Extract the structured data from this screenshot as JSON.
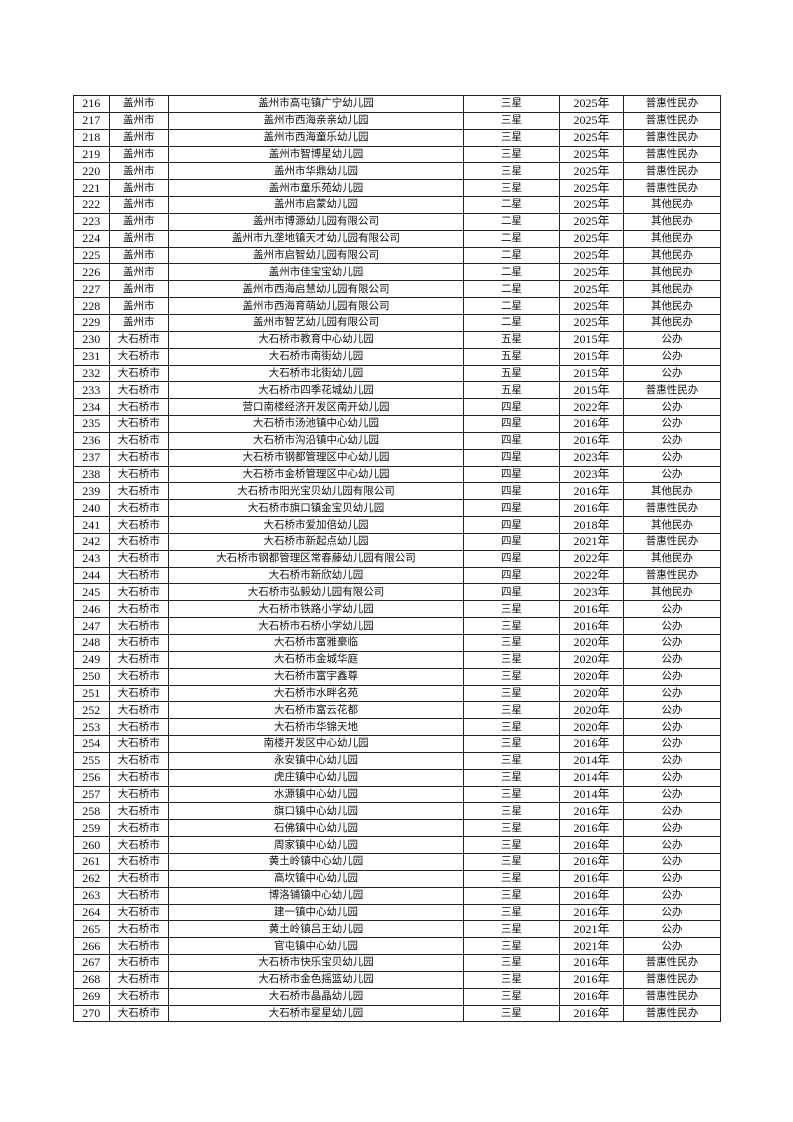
{
  "rows": [
    [
      "216",
      "盖州市",
      "盖州市高屯镇广宁幼儿园",
      "三星",
      "2025年",
      "普惠性民办"
    ],
    [
      "217",
      "盖州市",
      "盖州市西海亲亲幼儿园",
      "三星",
      "2025年",
      "普惠性民办"
    ],
    [
      "218",
      "盖州市",
      "盖州市西海童乐幼儿园",
      "三星",
      "2025年",
      "普惠性民办"
    ],
    [
      "219",
      "盖州市",
      "盖州市智博星幼儿园",
      "三星",
      "2025年",
      "普惠性民办"
    ],
    [
      "220",
      "盖州市",
      "盖州市华鼎幼儿园",
      "三星",
      "2025年",
      "普惠性民办"
    ],
    [
      "221",
      "盖州市",
      "盖州市童乐苑幼儿园",
      "三星",
      "2025年",
      "普惠性民办"
    ],
    [
      "222",
      "盖州市",
      "盖州市启蒙幼儿园",
      "二星",
      "2025年",
      "其他民办"
    ],
    [
      "223",
      "盖州市",
      "盖州市博源幼儿园有限公司",
      "二星",
      "2025年",
      "其他民办"
    ],
    [
      "224",
      "盖州市",
      "盖州市九垄地镇天才幼儿园有限公司",
      "二星",
      "2025年",
      "其他民办"
    ],
    [
      "225",
      "盖州市",
      "盖州市启智幼儿园有限公司",
      "二星",
      "2025年",
      "其他民办"
    ],
    [
      "226",
      "盖州市",
      "盖州市佳宝宝幼儿园",
      "二星",
      "2025年",
      "其他民办"
    ],
    [
      "227",
      "盖州市",
      "盖州市西海启慧幼儿园有限公司",
      "二星",
      "2025年",
      "其他民办"
    ],
    [
      "228",
      "盖州市",
      "盖州市西海育萌幼儿园有限公司",
      "二星",
      "2025年",
      "其他民办"
    ],
    [
      "229",
      "盖州市",
      "盖州市智艺幼儿园有限公司",
      "二星",
      "2025年",
      "其他民办"
    ],
    [
      "230",
      "大石桥市",
      "大石桥市教育中心幼儿园",
      "五星",
      "2015年",
      "公办"
    ],
    [
      "231",
      "大石桥市",
      "大石桥市南街幼儿园",
      "五星",
      "2015年",
      "公办"
    ],
    [
      "232",
      "大石桥市",
      "大石桥市北街幼儿园",
      "五星",
      "2015年",
      "公办"
    ],
    [
      "233",
      "大石桥市",
      "大石桥市四季花城幼儿园",
      "五星",
      "2015年",
      "普惠性民办"
    ],
    [
      "234",
      "大石桥市",
      "营口南楼经济开发区南开幼儿园",
      "四星",
      "2022年",
      "公办"
    ],
    [
      "235",
      "大石桥市",
      "大石桥市汤池镇中心幼儿园",
      "四星",
      "2016年",
      "公办"
    ],
    [
      "236",
      "大石桥市",
      "大石桥市沟沿镇中心幼儿园",
      "四星",
      "2016年",
      "公办"
    ],
    [
      "237",
      "大石桥市",
      "大石桥市钢都管理区中心幼儿园",
      "四星",
      "2023年",
      "公办"
    ],
    [
      "238",
      "大石桥市",
      "大石桥市金桥管理区中心幼儿园",
      "四星",
      "2023年",
      "公办"
    ],
    [
      "239",
      "大石桥市",
      "大石桥市阳光宝贝幼儿园有限公司",
      "四星",
      "2016年",
      "其他民办"
    ],
    [
      "240",
      "大石桥市",
      "大石桥市旗口镇金宝贝幼儿园",
      "四星",
      "2016年",
      "普惠性民办"
    ],
    [
      "241",
      "大石桥市",
      "大石桥市爱加倍幼儿园",
      "四星",
      "2018年",
      "其他民办"
    ],
    [
      "242",
      "大石桥市",
      "大石桥市新起点幼儿园",
      "四星",
      "2021年",
      "普惠性民办"
    ],
    [
      "243",
      "大石桥市",
      "大石桥市钢都管理区常春藤幼儿园有限公司",
      "四星",
      "2022年",
      "其他民办"
    ],
    [
      "244",
      "大石桥市",
      "大石桥市新欣幼儿园",
      "四星",
      "2022年",
      "普惠性民办"
    ],
    [
      "245",
      "大石桥市",
      "大石桥市弘毅幼儿园有限公司",
      "四星",
      "2023年",
      "其他民办"
    ],
    [
      "246",
      "大石桥市",
      "大石桥市铁路小学幼儿园",
      "三星",
      "2016年",
      "公办"
    ],
    [
      "247",
      "大石桥市",
      "大石桥市石桥小学幼儿园",
      "三星",
      "2016年",
      "公办"
    ],
    [
      "248",
      "大石桥市",
      "大石桥市富雅豪临",
      "三星",
      "2020年",
      "公办"
    ],
    [
      "249",
      "大石桥市",
      "大石桥市金城华庭",
      "三星",
      "2020年",
      "公办"
    ],
    [
      "250",
      "大石桥市",
      "大石桥市富宇鑫尊",
      "三星",
      "2020年",
      "公办"
    ],
    [
      "251",
      "大石桥市",
      "大石桥市水畔名苑",
      "三星",
      "2020年",
      "公办"
    ],
    [
      "252",
      "大石桥市",
      "大石桥市富云花都",
      "三星",
      "2020年",
      "公办"
    ],
    [
      "253",
      "大石桥市",
      "大石桥市华锦天地",
      "三星",
      "2020年",
      "公办"
    ],
    [
      "254",
      "大石桥市",
      "南楼开发区中心幼儿园",
      "三星",
      "2016年",
      "公办"
    ],
    [
      "255",
      "大石桥市",
      "永安镇中心幼儿园",
      "三星",
      "2014年",
      "公办"
    ],
    [
      "256",
      "大石桥市",
      "虎庄镇中心幼儿园",
      "三星",
      "2014年",
      "公办"
    ],
    [
      "257",
      "大石桥市",
      "水源镇中心幼儿园",
      "三星",
      "2014年",
      "公办"
    ],
    [
      "258",
      "大石桥市",
      "旗口镇中心幼儿园",
      "三星",
      "2016年",
      "公办"
    ],
    [
      "259",
      "大石桥市",
      "石佛镇中心幼儿园",
      "三星",
      "2016年",
      "公办"
    ],
    [
      "260",
      "大石桥市",
      "周家镇中心幼儿园",
      "三星",
      "2016年",
      "公办"
    ],
    [
      "261",
      "大石桥市",
      "黄土岭镇中心幼儿园",
      "三星",
      "2016年",
      "公办"
    ],
    [
      "262",
      "大石桥市",
      "高坎镇中心幼儿园",
      "三星",
      "2016年",
      "公办"
    ],
    [
      "263",
      "大石桥市",
      "博洛铺镇中心幼儿园",
      "三星",
      "2016年",
      "公办"
    ],
    [
      "264",
      "大石桥市",
      "建一镇中心幼儿园",
      "三星",
      "2016年",
      "公办"
    ],
    [
      "265",
      "大石桥市",
      "黄土岭镇吕王幼儿园",
      "三星",
      "2021年",
      "公办"
    ],
    [
      "266",
      "大石桥市",
      "官屯镇中心幼儿园",
      "三星",
      "2021年",
      "公办"
    ],
    [
      "267",
      "大石桥市",
      "大石桥市快乐宝贝幼儿园",
      "三星",
      "2016年",
      "普惠性民办"
    ],
    [
      "268",
      "大石桥市",
      "大石桥市金色摇篮幼儿园",
      "三星",
      "2016年",
      "普惠性民办"
    ],
    [
      "269",
      "大石桥市",
      "大石桥市晶晶幼儿园",
      "三星",
      "2016年",
      "普惠性民办"
    ],
    [
      "270",
      "大石桥市",
      "大石桥市星星幼儿园",
      "三星",
      "2016年",
      "普惠性民办"
    ]
  ]
}
